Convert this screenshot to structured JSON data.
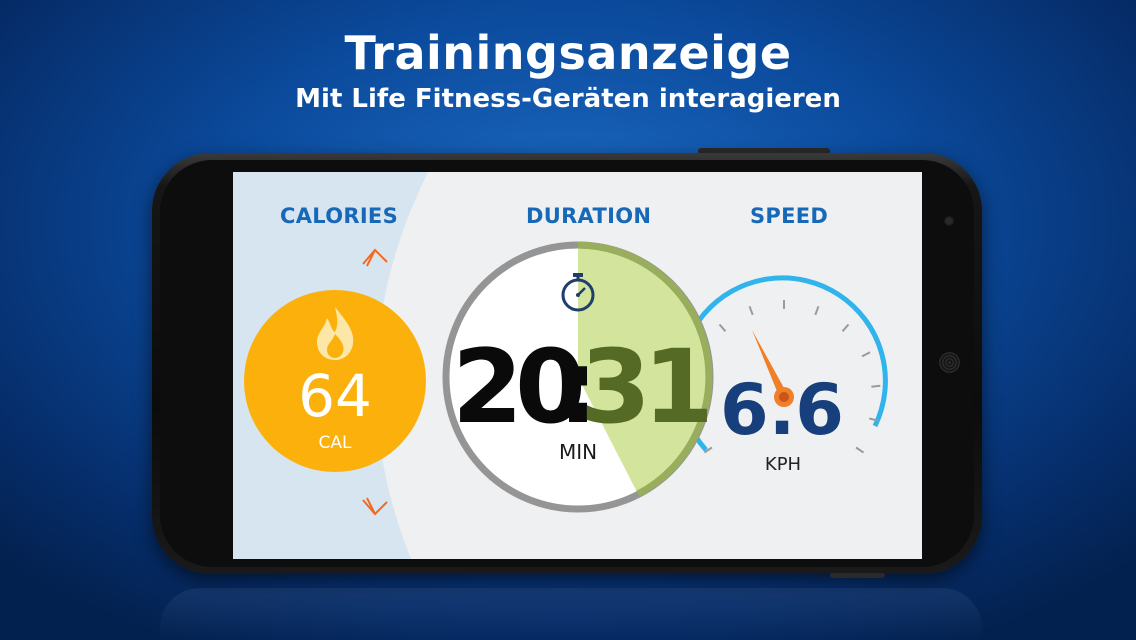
{
  "header": {
    "title": "Trainingsanzeige",
    "subtitle": "Mit Life Fitness-Geräten interagieren"
  },
  "calories": {
    "label": "CALORIES",
    "value": "64",
    "unit": "CAL",
    "icon": "flame-icon",
    "color": "#fcb00c"
  },
  "duration": {
    "label": "DURATION",
    "minutes": "20",
    "separator": ":",
    "seconds": "31",
    "unit": "MIN",
    "icon": "stopwatch-icon",
    "progress_color": "#d3e59c"
  },
  "speed": {
    "label": "SPEED",
    "value": "6.6",
    "unit": "KPH",
    "icon": "speedometer-icon",
    "accent": "#31b3ec",
    "needle_color": "#f07f2a"
  },
  "colors": {
    "label_blue": "#1769b8",
    "speed_value": "#163f7c",
    "arrow_orange": "#f26a21"
  }
}
